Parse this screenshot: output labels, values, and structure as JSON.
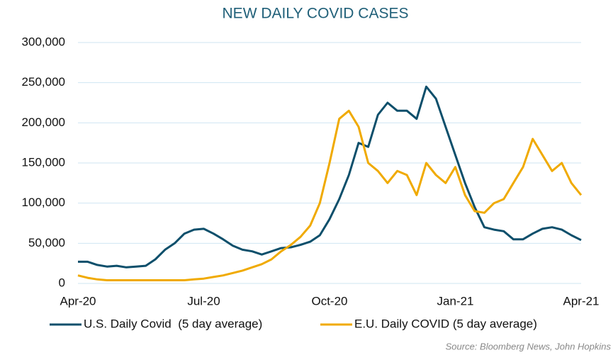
{
  "chart_data": {
    "type": "line",
    "title": "NEW DAILY COVID CASES",
    "source": "Source: Bloomberg News, John Hopkins",
    "categories": [
      "Apr-20",
      null,
      null,
      null,
      null,
      null,
      null,
      null,
      null,
      null,
      null,
      null,
      null,
      "Jul-20",
      null,
      null,
      null,
      null,
      null,
      null,
      null,
      null,
      null,
      null,
      null,
      null,
      "Oct-20",
      null,
      null,
      null,
      null,
      null,
      null,
      null,
      null,
      null,
      null,
      null,
      null,
      "Jan-21",
      null,
      null,
      null,
      null,
      null,
      null,
      null,
      null,
      null,
      null,
      null,
      null,
      "Apr-21"
    ],
    "series": [
      {
        "name": "U.S. Daily Covid  (5 day average)",
        "color": "#0d4f6b",
        "values": [
          27000,
          27000,
          23000,
          21000,
          22000,
          20000,
          21000,
          22000,
          30000,
          42000,
          50000,
          62000,
          67000,
          68000,
          62000,
          55000,
          47000,
          42000,
          40000,
          36000,
          40000,
          44000,
          45000,
          48000,
          52000,
          60000,
          80000,
          105000,
          135000,
          175000,
          170000,
          210000,
          225000,
          215000,
          215000,
          205000,
          245000,
          230000,
          195000,
          160000,
          125000,
          95000,
          70000,
          67000,
          65000,
          55000,
          55000,
          62000,
          68000,
          70000,
          67000,
          60000,
          54000
        ]
      },
      {
        "name": "E.U. Daily COVID (5 day average)",
        "color": "#f0aa00",
        "values": [
          10000,
          7000,
          5000,
          4000,
          4000,
          4000,
          4000,
          4000,
          4000,
          4000,
          4000,
          4000,
          5000,
          6000,
          8000,
          10000,
          13000,
          16000,
          20000,
          24000,
          30000,
          40000,
          48000,
          58000,
          72000,
          100000,
          150000,
          205000,
          215000,
          195000,
          150000,
          140000,
          125000,
          140000,
          135000,
          110000,
          150000,
          135000,
          125000,
          145000,
          110000,
          90000,
          88000,
          100000,
          105000,
          125000,
          145000,
          180000,
          160000,
          140000,
          150000,
          125000,
          110000
        ]
      }
    ],
    "ylim": [
      0,
      300000
    ],
    "yticks": [
      0,
      {
        "value": 50000,
        "label": "50,000"
      },
      {
        "value": 100000,
        "label": "100,000"
      },
      {
        "value": 150000,
        "label": "150,000"
      },
      {
        "value": 200000,
        "label": "200,000"
      },
      {
        "value": 250000,
        "label": "250,000"
      },
      {
        "value": 300000,
        "label": "300,000"
      }
    ],
    "grid": true,
    "legend": "bottom"
  }
}
